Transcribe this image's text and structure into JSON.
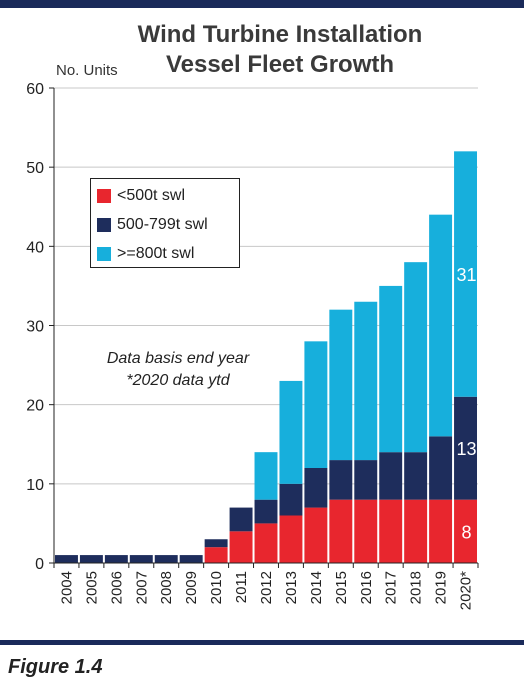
{
  "chart_data": {
    "type": "bar",
    "stacked": true,
    "title": "Wind Turbine Installation Vessel Fleet Growth",
    "ylabel": "No. Units",
    "ylim": [
      0,
      60
    ],
    "yticks": [
      0,
      10,
      20,
      30,
      40,
      50,
      60
    ],
    "grid": true,
    "legend_position": "top-left",
    "categories": [
      "2004",
      "2005",
      "2006",
      "2007",
      "2008",
      "2009",
      "2010",
      "2011",
      "2012",
      "2013",
      "2014",
      "2015",
      "2016",
      "2017",
      "2018",
      "2019",
      "2020*"
    ],
    "series": [
      {
        "name": "<500t swl",
        "color": "#e8262e",
        "values": [
          0,
          0,
          0,
          0,
          0,
          0,
          2,
          4,
          5,
          6,
          7,
          8,
          8,
          8,
          8,
          8,
          8
        ]
      },
      {
        "name": "500-799t swl",
        "color": "#1e2d5c",
        "values": [
          1,
          1,
          1,
          1,
          1,
          1,
          1,
          3,
          3,
          4,
          5,
          5,
          5,
          6,
          6,
          8,
          13
        ]
      },
      {
        "name": ">=800t swl",
        "color": "#17afdc",
        "values": [
          0,
          0,
          0,
          0,
          0,
          0,
          0,
          0,
          6,
          13,
          16,
          19,
          20,
          21,
          24,
          28,
          31
        ]
      }
    ],
    "data_labels": [
      {
        "category": "2020*",
        "series": ">=800t swl",
        "text": "31"
      },
      {
        "category": "2020*",
        "series": "500-799t swl",
        "text": "13"
      },
      {
        "category": "2020*",
        "series": "<500t swl",
        "text": "8"
      }
    ],
    "annotation": [
      "Data basis end year",
      "*2020 data ytd"
    ]
  },
  "figure_label": "Figure 1.4",
  "colors": {
    "rule": "#1a2a5a",
    "grid": "#c8c8c8",
    "axis": "#222222"
  }
}
